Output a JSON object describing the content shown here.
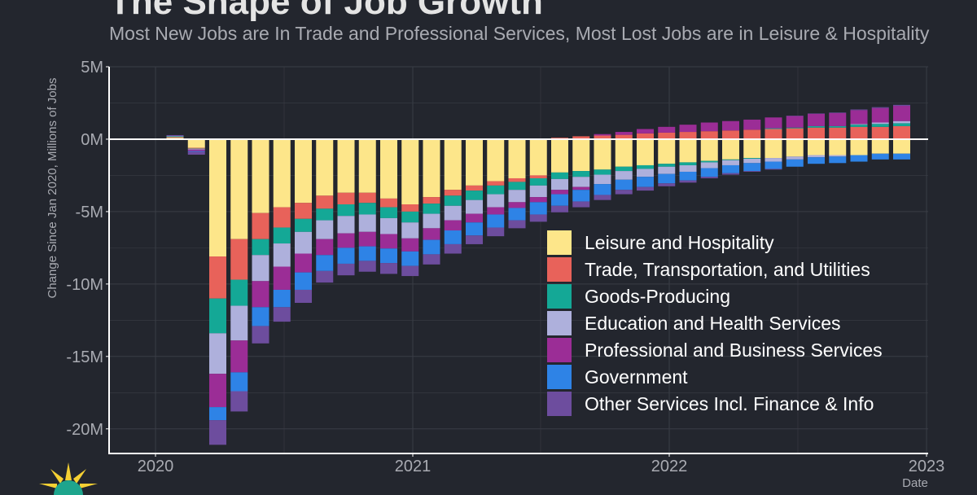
{
  "title": "The Shape of Job Growth",
  "subtitle": "Most New Jobs are In Trade and Professional Services, Most Lost Jobs are in Leisure & Hospitality",
  "colors": {
    "background": "#23262e",
    "grid": "#3a3d46",
    "axis": "#ffffff",
    "tick_text": "#a9abb2",
    "zero_line": "#ffffff"
  },
  "chart_data": {
    "type": "bar",
    "stacked": true,
    "title": "The Shape of Job Growth",
    "xlabel": "Date",
    "ylabel": "Change Since Jan 2020, Millions of Jobs",
    "ylim": [
      -22,
      5
    ],
    "y_ticks": [
      {
        "value": 5,
        "label": "5M"
      },
      {
        "value": 0,
        "label": "0M"
      },
      {
        "value": -5,
        "label": "-5M"
      },
      {
        "value": -10,
        "label": "-10M"
      },
      {
        "value": -15,
        "label": "-15M"
      },
      {
        "value": -20,
        "label": "-20M"
      }
    ],
    "x_ticks": [
      "2020",
      "2021",
      "2022",
      "2023"
    ],
    "categories": [
      "Jan 2020",
      "Feb 2020",
      "Mar 2020",
      "Apr 2020",
      "May 2020",
      "Jun 2020",
      "Jul 2020",
      "Aug 2020",
      "Sep 2020",
      "Oct 2020",
      "Nov 2020",
      "Dec 2020",
      "Jan 2021",
      "Feb 2021",
      "Mar 2021",
      "Apr 2021",
      "May 2021",
      "Jun 2021",
      "Jul 2021",
      "Aug 2021",
      "Sep 2021",
      "Oct 2021",
      "Nov 2021",
      "Dec 2021",
      "Jan 2022",
      "Feb 2022",
      "Mar 2022",
      "Apr 2022",
      "May 2022",
      "Jun 2022",
      "Jul 2022",
      "Aug 2022",
      "Sep 2022",
      "Oct 2022",
      "Nov 2022"
    ],
    "series": [
      {
        "name": "Leisure and Hospitality",
        "color": "#fde68a",
        "values": [
          0.1,
          -0.6,
          -8.1,
          -6.9,
          -5.1,
          -4.7,
          -4.4,
          -3.9,
          -3.7,
          -3.7,
          -4.1,
          -4.5,
          -4.0,
          -3.5,
          -3.2,
          -2.9,
          -2.7,
          -2.5,
          -2.3,
          -2.2,
          -2.1,
          -1.9,
          -1.8,
          -1.7,
          -1.6,
          -1.5,
          -1.4,
          -1.3,
          -1.3,
          -1.2,
          -1.1,
          -1.1,
          -1.1,
          -1.0,
          -1.0
        ]
      },
      {
        "name": "Trade, Transportation, and Utilities",
        "color": "#e8625a",
        "values": [
          0.05,
          -0.05,
          -2.9,
          -2.8,
          -1.8,
          -1.4,
          -1.1,
          -0.9,
          -0.8,
          -0.7,
          -0.6,
          -0.5,
          -0.45,
          -0.4,
          -0.35,
          -0.3,
          -0.25,
          -0.2,
          0.1,
          0.2,
          0.25,
          0.3,
          0.4,
          0.45,
          0.5,
          0.55,
          0.6,
          0.65,
          0.7,
          0.75,
          0.8,
          0.8,
          0.85,
          0.85,
          0.9
        ]
      },
      {
        "name": "Goods-Producing",
        "color": "#14a896",
        "values": [
          0.05,
          -0.02,
          -2.4,
          -1.8,
          -1.1,
          -1.1,
          -0.9,
          -0.8,
          -0.8,
          -0.8,
          -0.75,
          -0.75,
          -0.7,
          -0.7,
          -0.65,
          -0.6,
          -0.55,
          -0.5,
          -0.45,
          -0.4,
          -0.35,
          -0.3,
          -0.25,
          -0.2,
          -0.2,
          -0.1,
          -0.05,
          -0.05,
          0.05,
          0.05,
          0.1,
          0.1,
          0.15,
          0.2,
          0.2
        ]
      },
      {
        "name": "Education and Health Services",
        "color": "#aeb0dc",
        "values": [
          0.03,
          -0.05,
          -2.8,
          -2.4,
          -1.8,
          -1.6,
          -1.5,
          -1.3,
          -1.2,
          -1.2,
          -1.1,
          -1.1,
          -1.0,
          -1.0,
          -0.95,
          -0.9,
          -0.85,
          -0.8,
          -0.75,
          -0.7,
          -0.65,
          -0.6,
          -0.55,
          -0.5,
          -0.45,
          -0.4,
          -0.35,
          -0.3,
          -0.25,
          -0.2,
          -0.15,
          -0.1,
          0.05,
          0.1,
          0.15
        ]
      },
      {
        "name": "Professional and Business Services",
        "color": "#9b2d96",
        "values": [
          0.02,
          -0.1,
          -2.3,
          -2.2,
          -1.8,
          -1.6,
          -1.3,
          -1.1,
          -1.0,
          -1.0,
          -1.0,
          -0.9,
          -0.8,
          -0.7,
          -0.6,
          -0.5,
          -0.4,
          -0.35,
          -0.3,
          -0.2,
          0.1,
          0.2,
          0.3,
          0.4,
          0.5,
          0.6,
          0.65,
          0.7,
          0.75,
          0.8,
          0.85,
          0.9,
          0.95,
          1.0,
          1.05
        ]
      },
      {
        "name": "Government",
        "color": "#2e83e6",
        "values": [
          0.02,
          -0.05,
          -0.9,
          -1.3,
          -1.3,
          -1.2,
          -1.2,
          -1.1,
          -1.1,
          -1.0,
          -1.0,
          -1.0,
          -1.0,
          -0.95,
          -0.9,
          -0.9,
          -0.85,
          -0.85,
          -0.8,
          -0.8,
          -0.75,
          -0.7,
          -0.7,
          -0.65,
          -0.6,
          -0.6,
          -0.55,
          -0.55,
          -0.5,
          -0.5,
          -0.45,
          -0.45,
          -0.45,
          -0.4,
          -0.4
        ]
      },
      {
        "name": "Other Services Incl. Finance & Info",
        "color": "#6d4d9e",
        "values": [
          0.01,
          -0.2,
          -1.7,
          -1.4,
          -1.2,
          -1.0,
          -0.9,
          -0.8,
          -0.8,
          -0.75,
          -0.75,
          -0.7,
          -0.7,
          -0.65,
          -0.6,
          -0.6,
          -0.55,
          -0.5,
          -0.45,
          -0.4,
          -0.35,
          -0.3,
          -0.25,
          -0.2,
          -0.15,
          -0.1,
          -0.1,
          -0.05,
          -0.05,
          0.02,
          0.03,
          0.04,
          0.05,
          0.06,
          0.07
        ]
      }
    ],
    "legend_position": "bottom-right"
  }
}
